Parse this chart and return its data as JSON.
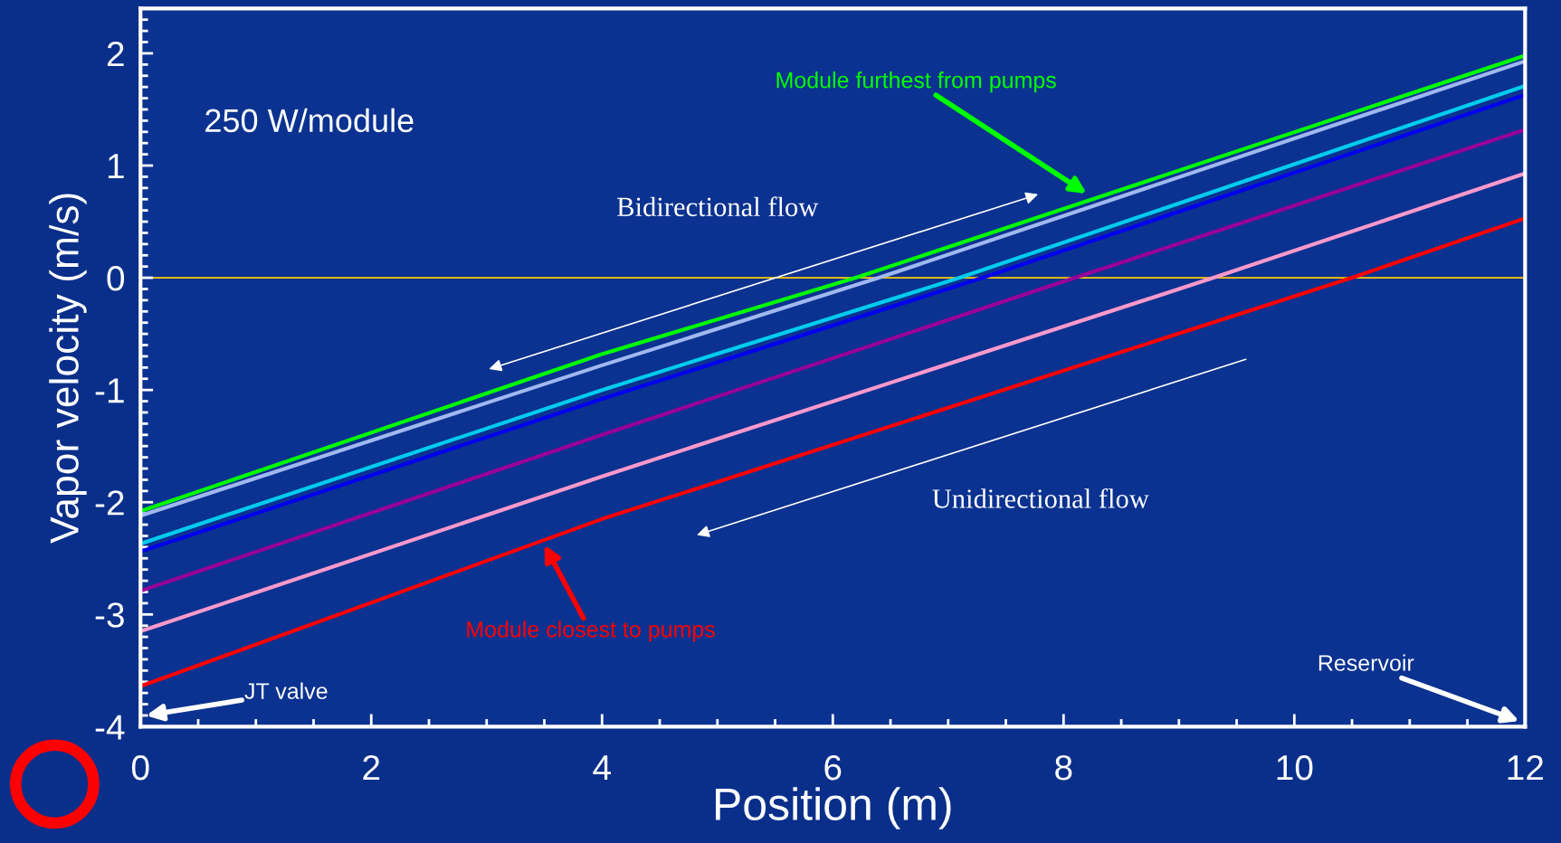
{
  "chart_data": {
    "type": "line",
    "xlabel": "Position (m)",
    "ylabel": "Vapor velocity (m/s)",
    "xlim": [
      0,
      12
    ],
    "xticks": [
      0,
      2,
      4,
      6,
      8,
      10,
      12
    ],
    "ylim": [
      -4,
      2.4
    ],
    "yticks": [
      -4,
      -3,
      -2,
      -1,
      0,
      1,
      2
    ],
    "grid": false,
    "marker": "none",
    "line_style": "solid",
    "series": [
      {
        "color": "#00ff00",
        "x": [
          0,
          4,
          6.2,
          12
        ],
        "values": [
          -2.08,
          -0.68,
          0,
          1.98
        ]
      },
      {
        "color": "#a0b8f0",
        "x": [
          0,
          4,
          6.4,
          12
        ],
        "values": [
          -2.12,
          -0.78,
          0,
          1.93
        ]
      },
      {
        "color": "#00ccee",
        "x": [
          0,
          4,
          7.1,
          12
        ],
        "values": [
          -2.37,
          -1.0,
          0,
          1.71
        ]
      },
      {
        "color": "#0000ee",
        "x": [
          0,
          4,
          7.3,
          12
        ],
        "values": [
          -2.44,
          -1.08,
          0,
          1.63
        ]
      },
      {
        "color": "#990099",
        "x": [
          0,
          4,
          8.1,
          12
        ],
        "values": [
          -2.79,
          -1.4,
          0,
          1.32
        ]
      },
      {
        "color": "#ff99cc",
        "x": [
          0,
          4,
          9.3,
          12
        ],
        "values": [
          -3.15,
          -1.77,
          0,
          0.93
        ]
      },
      {
        "color": "#ff0000",
        "x": [
          0,
          4,
          10.5,
          12
        ],
        "values": [
          -3.64,
          -2.15,
          0,
          0.53
        ]
      }
    ],
    "ref_lines": [
      {
        "axis": "y",
        "value": 0,
        "color": "#ffcc00"
      }
    ],
    "annotations": [
      "250 W/module",
      "Module furthest from pumps",
      "Bidirectional flow",
      "Unidirectional flow",
      "Module closest to pumps",
      "JT valve",
      "Reservoir"
    ]
  }
}
